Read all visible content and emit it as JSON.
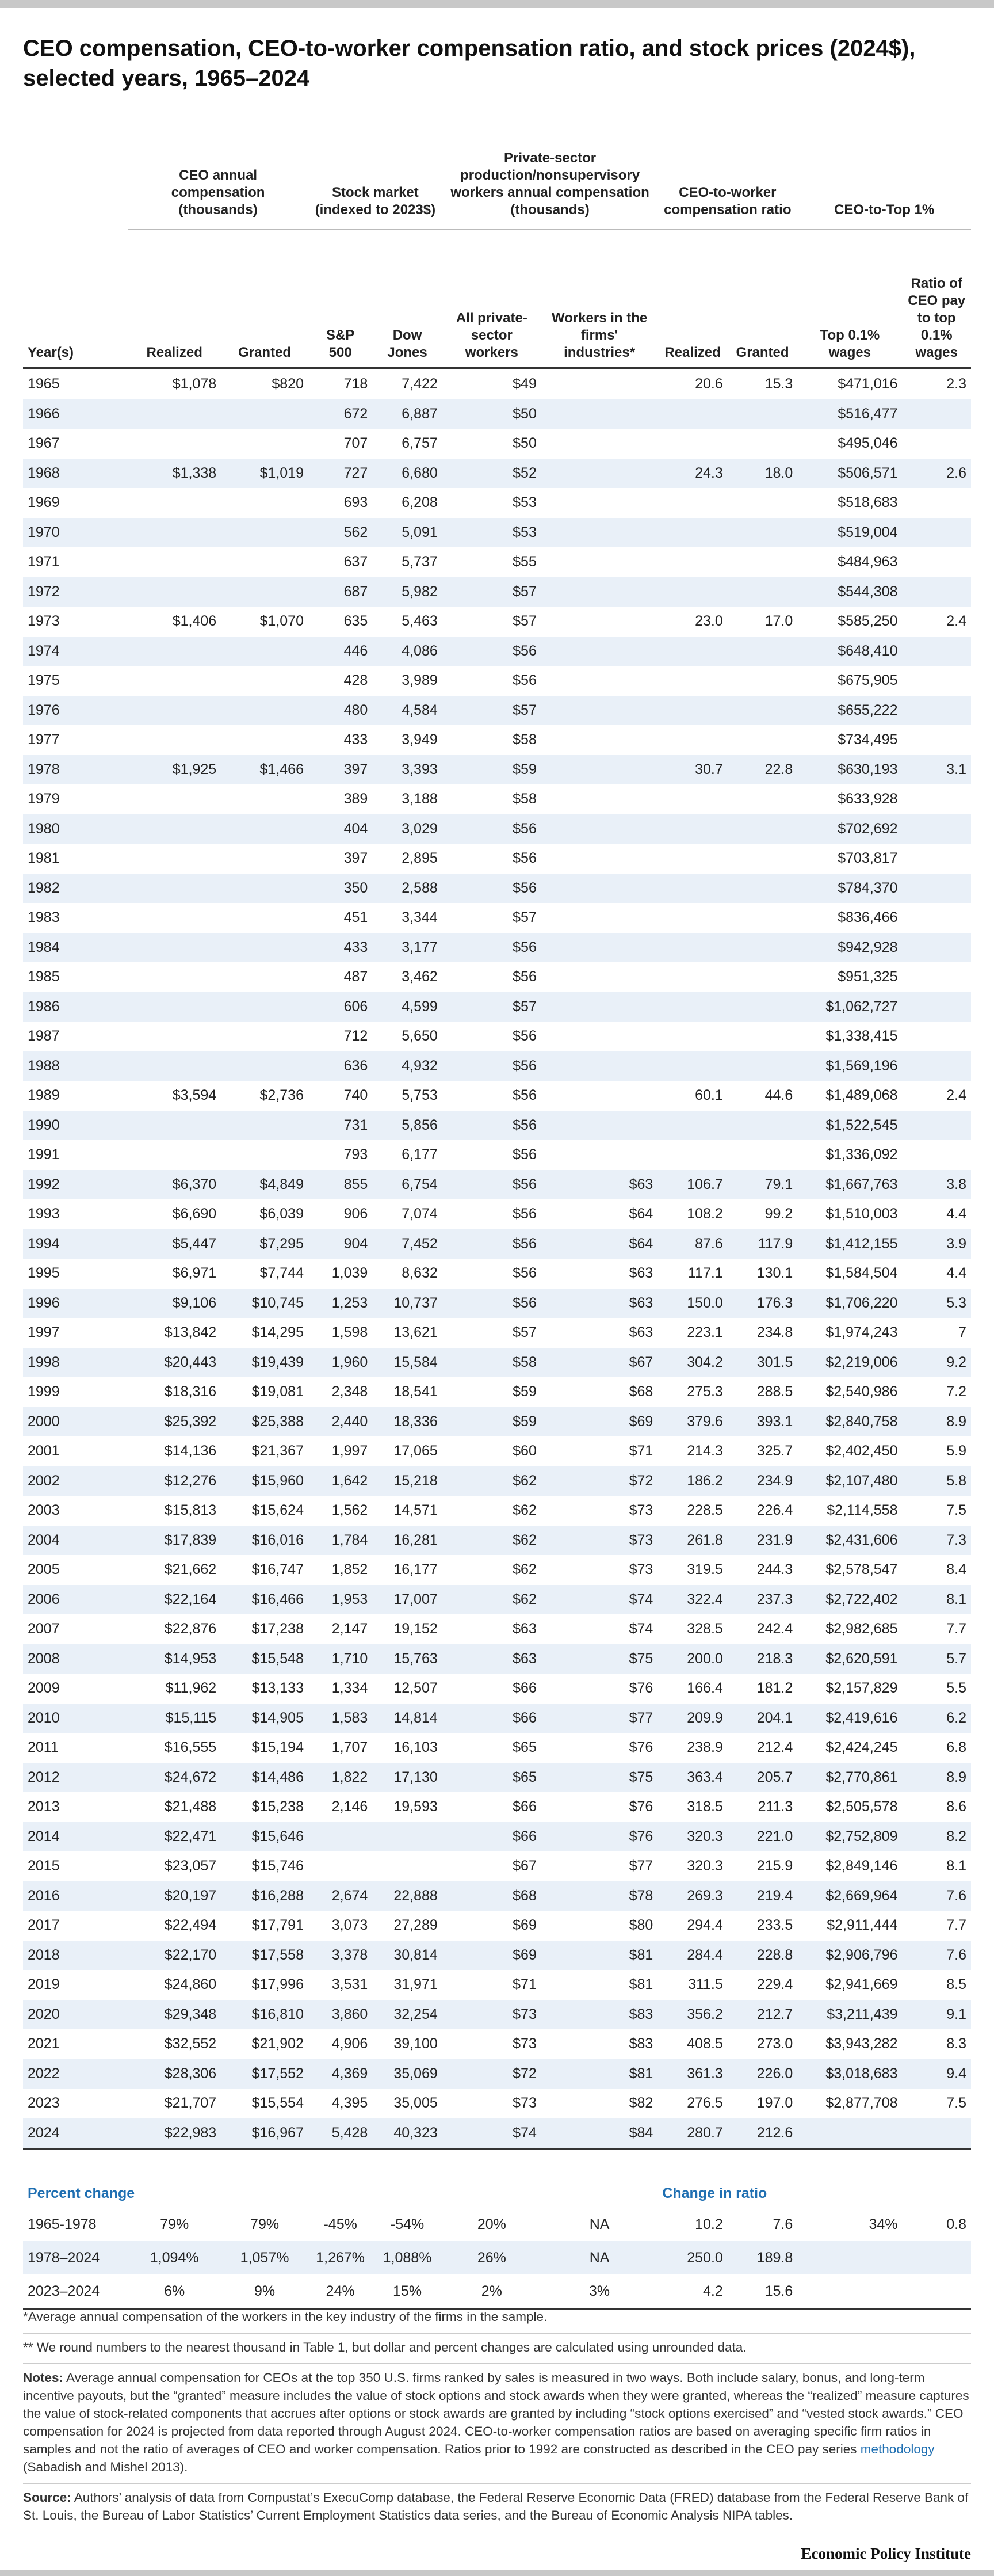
{
  "title": "CEO compensation, CEO-to-worker compensation ratio, and stock prices (2024$), selected years, 1965–2024",
  "table": {
    "group_headers": [
      "CEO annual compensation (thousands)",
      "Stock market (indexed to 2023$)",
      "Private-sector production/nonsupervisory workers annual compensation (thousands)",
      "CEO-to-worker compensation ratio",
      "CEO-to-Top 1%"
    ],
    "columns": [
      "Year(s)",
      "Realized",
      "Granted",
      "S&P 500",
      "Dow Jones",
      "All private-sector workers",
      "Workers in the firms' industries*",
      "Realized",
      "Granted",
      "Top 0.1% wages",
      "Ratio of CEO pay to top 0.1% wages"
    ],
    "rows": [
      [
        "1965",
        "$1,078",
        "$820",
        "718",
        "7,422",
        "$49",
        null,
        "20.6",
        "15.3",
        "$471,016",
        "2.3"
      ],
      [
        "1966",
        null,
        null,
        "672",
        "6,887",
        "$50",
        null,
        null,
        null,
        "$516,477",
        null
      ],
      [
        "1967",
        null,
        null,
        "707",
        "6,757",
        "$50",
        null,
        null,
        null,
        "$495,046",
        null
      ],
      [
        "1968",
        "$1,338",
        "$1,019",
        "727",
        "6,680",
        "$52",
        null,
        "24.3",
        "18.0",
        "$506,571",
        "2.6"
      ],
      [
        "1969",
        null,
        null,
        "693",
        "6,208",
        "$53",
        null,
        null,
        null,
        "$518,683",
        null
      ],
      [
        "1970",
        null,
        null,
        "562",
        "5,091",
        "$53",
        null,
        null,
        null,
        "$519,004",
        null
      ],
      [
        "1971",
        null,
        null,
        "637",
        "5,737",
        "$55",
        null,
        null,
        null,
        "$484,963",
        null
      ],
      [
        "1972",
        null,
        null,
        "687",
        "5,982",
        "$57",
        null,
        null,
        null,
        "$544,308",
        null
      ],
      [
        "1973",
        "$1,406",
        "$1,070",
        "635",
        "5,463",
        "$57",
        null,
        "23.0",
        "17.0",
        "$585,250",
        "2.4"
      ],
      [
        "1974",
        null,
        null,
        "446",
        "4,086",
        "$56",
        null,
        null,
        null,
        "$648,410",
        null
      ],
      [
        "1975",
        null,
        null,
        "428",
        "3,989",
        "$56",
        null,
        null,
        null,
        "$675,905",
        null
      ],
      [
        "1976",
        null,
        null,
        "480",
        "4,584",
        "$57",
        null,
        null,
        null,
        "$655,222",
        null
      ],
      [
        "1977",
        null,
        null,
        "433",
        "3,949",
        "$58",
        null,
        null,
        null,
        "$734,495",
        null
      ],
      [
        "1978",
        "$1,925",
        "$1,466",
        "397",
        "3,393",
        "$59",
        null,
        "30.7",
        "22.8",
        "$630,193",
        "3.1"
      ],
      [
        "1979",
        null,
        null,
        "389",
        "3,188",
        "$58",
        null,
        null,
        null,
        "$633,928",
        null
      ],
      [
        "1980",
        null,
        null,
        "404",
        "3,029",
        "$56",
        null,
        null,
        null,
        "$702,692",
        null
      ],
      [
        "1981",
        null,
        null,
        "397",
        "2,895",
        "$56",
        null,
        null,
        null,
        "$703,817",
        null
      ],
      [
        "1982",
        null,
        null,
        "350",
        "2,588",
        "$56",
        null,
        null,
        null,
        "$784,370",
        null
      ],
      [
        "1983",
        null,
        null,
        "451",
        "3,344",
        "$57",
        null,
        null,
        null,
        "$836,466",
        null
      ],
      [
        "1984",
        null,
        null,
        "433",
        "3,177",
        "$56",
        null,
        null,
        null,
        "$942,928",
        null
      ],
      [
        "1985",
        null,
        null,
        "487",
        "3,462",
        "$56",
        null,
        null,
        null,
        "$951,325",
        null
      ],
      [
        "1986",
        null,
        null,
        "606",
        "4,599",
        "$57",
        null,
        null,
        null,
        "$1,062,727",
        null
      ],
      [
        "1987",
        null,
        null,
        "712",
        "5,650",
        "$56",
        null,
        null,
        null,
        "$1,338,415",
        null
      ],
      [
        "1988",
        null,
        null,
        "636",
        "4,932",
        "$56",
        null,
        null,
        null,
        "$1,569,196",
        null
      ],
      [
        "1989",
        "$3,594",
        "$2,736",
        "740",
        "5,753",
        "$56",
        null,
        "60.1",
        "44.6",
        "$1,489,068",
        "2.4"
      ],
      [
        "1990",
        null,
        null,
        "731",
        "5,856",
        "$56",
        null,
        null,
        null,
        "$1,522,545",
        null
      ],
      [
        "1991",
        null,
        null,
        "793",
        "6,177",
        "$56",
        null,
        null,
        null,
        "$1,336,092",
        null
      ],
      [
        "1992",
        "$6,370",
        "$4,849",
        "855",
        "6,754",
        "$56",
        "$63",
        "106.7",
        "79.1",
        "$1,667,763",
        "3.8"
      ],
      [
        "1993",
        "$6,690",
        "$6,039",
        "906",
        "7,074",
        "$56",
        "$64",
        "108.2",
        "99.2",
        "$1,510,003",
        "4.4"
      ],
      [
        "1994",
        "$5,447",
        "$7,295",
        "904",
        "7,452",
        "$56",
        "$64",
        "87.6",
        "117.9",
        "$1,412,155",
        "3.9"
      ],
      [
        "1995",
        "$6,971",
        "$7,744",
        "1,039",
        "8,632",
        "$56",
        "$63",
        "117.1",
        "130.1",
        "$1,584,504",
        "4.4"
      ],
      [
        "1996",
        "$9,106",
        "$10,745",
        "1,253",
        "10,737",
        "$56",
        "$63",
        "150.0",
        "176.3",
        "$1,706,220",
        "5.3"
      ],
      [
        "1997",
        "$13,842",
        "$14,295",
        "1,598",
        "13,621",
        "$57",
        "$63",
        "223.1",
        "234.8",
        "$1,974,243",
        "7"
      ],
      [
        "1998",
        "$20,443",
        "$19,439",
        "1,960",
        "15,584",
        "$58",
        "$67",
        "304.2",
        "301.5",
        "$2,219,006",
        "9.2"
      ],
      [
        "1999",
        "$18,316",
        "$19,081",
        "2,348",
        "18,541",
        "$59",
        "$68",
        "275.3",
        "288.5",
        "$2,540,986",
        "7.2"
      ],
      [
        "2000",
        "$25,392",
        "$25,388",
        "2,440",
        "18,336",
        "$59",
        "$69",
        "379.6",
        "393.1",
        "$2,840,758",
        "8.9"
      ],
      [
        "2001",
        "$14,136",
        "$21,367",
        "1,997",
        "17,065",
        "$60",
        "$71",
        "214.3",
        "325.7",
        "$2,402,450",
        "5.9"
      ],
      [
        "2002",
        "$12,276",
        "$15,960",
        "1,642",
        "15,218",
        "$62",
        "$72",
        "186.2",
        "234.9",
        "$2,107,480",
        "5.8"
      ],
      [
        "2003",
        "$15,813",
        "$15,624",
        "1,562",
        "14,571",
        "$62",
        "$73",
        "228.5",
        "226.4",
        "$2,114,558",
        "7.5"
      ],
      [
        "2004",
        "$17,839",
        "$16,016",
        "1,784",
        "16,281",
        "$62",
        "$73",
        "261.8",
        "231.9",
        "$2,431,606",
        "7.3"
      ],
      [
        "2005",
        "$21,662",
        "$16,747",
        "1,852",
        "16,177",
        "$62",
        "$73",
        "319.5",
        "244.3",
        "$2,578,547",
        "8.4"
      ],
      [
        "2006",
        "$22,164",
        "$16,466",
        "1,953",
        "17,007",
        "$62",
        "$74",
        "322.4",
        "237.3",
        "$2,722,402",
        "8.1"
      ],
      [
        "2007",
        "$22,876",
        "$17,238",
        "2,147",
        "19,152",
        "$63",
        "$74",
        "328.5",
        "242.4",
        "$2,982,685",
        "7.7"
      ],
      [
        "2008",
        "$14,953",
        "$15,548",
        "1,710",
        "15,763",
        "$63",
        "$75",
        "200.0",
        "218.3",
        "$2,620,591",
        "5.7"
      ],
      [
        "2009",
        "$11,962",
        "$13,133",
        "1,334",
        "12,507",
        "$66",
        "$76",
        "166.4",
        "181.2",
        "$2,157,829",
        "5.5"
      ],
      [
        "2010",
        "$15,115",
        "$14,905",
        "1,583",
        "14,814",
        "$66",
        "$77",
        "209.9",
        "204.1",
        "$2,419,616",
        "6.2"
      ],
      [
        "2011",
        "$16,555",
        "$15,194",
        "1,707",
        "16,103",
        "$65",
        "$76",
        "238.9",
        "212.4",
        "$2,424,245",
        "6.8"
      ],
      [
        "2012",
        "$24,672",
        "$14,486",
        "1,822",
        "17,130",
        "$65",
        "$75",
        "363.4",
        "205.7",
        "$2,770,861",
        "8.9"
      ],
      [
        "2013",
        "$21,488",
        "$15,238",
        "2,146",
        "19,593",
        "$66",
        "$76",
        "318.5",
        "211.3",
        "$2,505,578",
        "8.6"
      ],
      [
        "2014",
        "$22,471",
        "$15,646",
        null,
        null,
        "$66",
        "$76",
        "320.3",
        "221.0",
        "$2,752,809",
        "8.2"
      ],
      [
        "2015",
        "$23,057",
        "$15,746",
        null,
        null,
        "$67",
        "$77",
        "320.3",
        "215.9",
        "$2,849,146",
        "8.1"
      ],
      [
        "2016",
        "$20,197",
        "$16,288",
        "2,674",
        "22,888",
        "$68",
        "$78",
        "269.3",
        "219.4",
        "$2,669,964",
        "7.6"
      ],
      [
        "2017",
        "$22,494",
        "$17,791",
        "3,073",
        "27,289",
        "$69",
        "$80",
        "294.4",
        "233.5",
        "$2,911,444",
        "7.7"
      ],
      [
        "2018",
        "$22,170",
        "$17,558",
        "3,378",
        "30,814",
        "$69",
        "$81",
        "284.4",
        "228.8",
        "$2,906,796",
        "7.6"
      ],
      [
        "2019",
        "$24,860",
        "$17,996",
        "3,531",
        "31,971",
        "$71",
        "$81",
        "311.5",
        "229.4",
        "$2,941,669",
        "8.5"
      ],
      [
        "2020",
        "$29,348",
        "$16,810",
        "3,860",
        "32,254",
        "$73",
        "$83",
        "356.2",
        "212.7",
        "$3,211,439",
        "9.1"
      ],
      [
        "2021",
        "$32,552",
        "$21,902",
        "4,906",
        "39,100",
        "$73",
        "$83",
        "408.5",
        "273.0",
        "$3,943,282",
        "8.3"
      ],
      [
        "2022",
        "$28,306",
        "$17,552",
        "4,369",
        "35,069",
        "$72",
        "$81",
        "361.3",
        "226.0",
        "$3,018,683",
        "9.4"
      ],
      [
        "2023",
        "$21,707",
        "$15,554",
        "4,395",
        "35,005",
        "$73",
        "$82",
        "276.5",
        "197.0",
        "$2,877,708",
        "7.5"
      ],
      [
        "2024",
        "$22,983",
        "$16,967",
        "5,428",
        "40,323",
        "$74",
        "$84",
        "280.7",
        "212.6",
        null,
        null
      ]
    ]
  },
  "change": {
    "label": "Percent change",
    "ratio_label": "Change in ratio",
    "rows": [
      [
        "1965-1978",
        "79%",
        "79%",
        "-45%",
        "-54%",
        "20%",
        "NA",
        "10.2",
        "7.6",
        "34%",
        "0.8"
      ],
      [
        "1978–2024",
        "1,094%",
        "1,057%",
        "1,267%",
        "1,088%",
        "26%",
        "NA",
        "250.0",
        "189.8",
        null,
        null
      ],
      [
        "2023–2024",
        "6%",
        "9%",
        "24%",
        "15%",
        "2%",
        "3%",
        "4.2",
        "15.6",
        null,
        null
      ]
    ]
  },
  "footnotes": [
    "*Average annual compensation of the workers in the key industry of the firms in the sample.",
    "** We round numbers to the nearest thousand in Table 1, but dollar and percent changes are calculated using unrounded data."
  ],
  "notes": {
    "label": "Notes:",
    "text_before": "Average annual compensation for CEOs at the top 350 U.S. firms ranked by sales is measured in two ways. Both include salary, bonus, and long-term incentive payouts, but the “granted” measure includes the value of stock options and stock awards when they were granted, whereas the “realized” measure captures the value of stock-related components that accrues after options or stock awards are granted by including “stock options exercised” and “vested stock awards.” CEO compensation for 2024 is projected from data reported through August 2024. CEO-to-worker compensation ratios are based on averaging specific firm ratios in samples and not the ratio of averages of CEO and worker compensation. Ratios prior to 1992 are constructed as described in the CEO pay series",
    "link": "methodology",
    "text_after": " (Sabadish and Mishel 2013)."
  },
  "source": {
    "label": "Source:",
    "text": "Authors’ analysis of data from Compustat’s ExecuComp database, the Federal Reserve Economic Data (FRED) database from the Federal Reserve Bank of St. Louis, the Bureau of Labor Statistics’ Current Employment Statistics data series, and the Bureau of Economic Analysis NIPA tables."
  },
  "brand": "Economic Policy Institute"
}
